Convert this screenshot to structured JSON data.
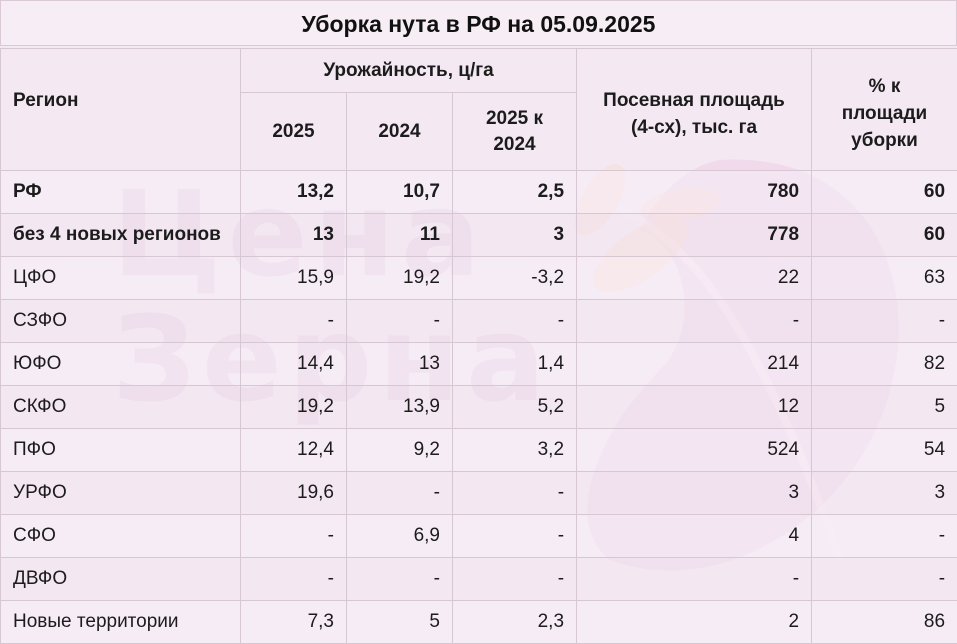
{
  "title": "Уборка нута в РФ на 05.09.2025",
  "watermark": {
    "line1": "Цена",
    "line2": "Зерна"
  },
  "header": {
    "region": "Регион",
    "yield_group": "Урожайность, ц/га",
    "col_2025": "2025",
    "col_2024": "2024",
    "col_diff": "2025 к 2024",
    "area": "Посевная площадь (4-сх), тыс. га",
    "pct": "% к площади уборки"
  },
  "chart_data": {
    "type": "table",
    "title": "Уборка нута в РФ на 05.09.2025",
    "columns": [
      "Регион",
      "Урожайность 2025",
      "Урожайность 2024",
      "2025 к 2024",
      "Посевная площадь (4-сх), тыс. га",
      "% к площади уборки"
    ],
    "rows": [
      {
        "region": "РФ",
        "y2025": "13,2",
        "y2024": "10,7",
        "diff": "2,5",
        "area": "780",
        "pct": "60",
        "bold": true
      },
      {
        "region": "без 4 новых регионов",
        "y2025": "13",
        "y2024": "11",
        "diff": "3",
        "area": "778",
        "pct": "60",
        "bold": true
      },
      {
        "region": "ЦФО",
        "y2025": "15,9",
        "y2024": "19,2",
        "diff": "-3,2",
        "area": "22",
        "pct": "63"
      },
      {
        "region": "СЗФО",
        "y2025": "-",
        "y2024": "-",
        "diff": "-",
        "area": "-",
        "pct": "-"
      },
      {
        "region": "ЮФО",
        "y2025": "14,4",
        "y2024": "13",
        "diff": "1,4",
        "area": "214",
        "pct": "82"
      },
      {
        "region": "СКФО",
        "y2025": "19,2",
        "y2024": "13,9",
        "diff": "5,2",
        "area": "12",
        "pct": "5"
      },
      {
        "region": "ПФО",
        "y2025": "12,4",
        "y2024": "9,2",
        "diff": "3,2",
        "area": "524",
        "pct": "54"
      },
      {
        "region": "УРФО",
        "y2025": "19,6",
        "y2024": "-",
        "diff": "-",
        "area": "3",
        "pct": "3"
      },
      {
        "region": "СФО",
        "y2025": "-",
        "y2024": "6,9",
        "diff": "-",
        "area": "4",
        "pct": "-"
      },
      {
        "region": "ДВФО",
        "y2025": "-",
        "y2024": "-",
        "diff": "-",
        "area": "-",
        "pct": "-"
      },
      {
        "region": "Новые территории",
        "y2025": "7,3",
        "y2024": "5",
        "diff": "2,3",
        "area": "2",
        "pct": "86"
      }
    ]
  }
}
